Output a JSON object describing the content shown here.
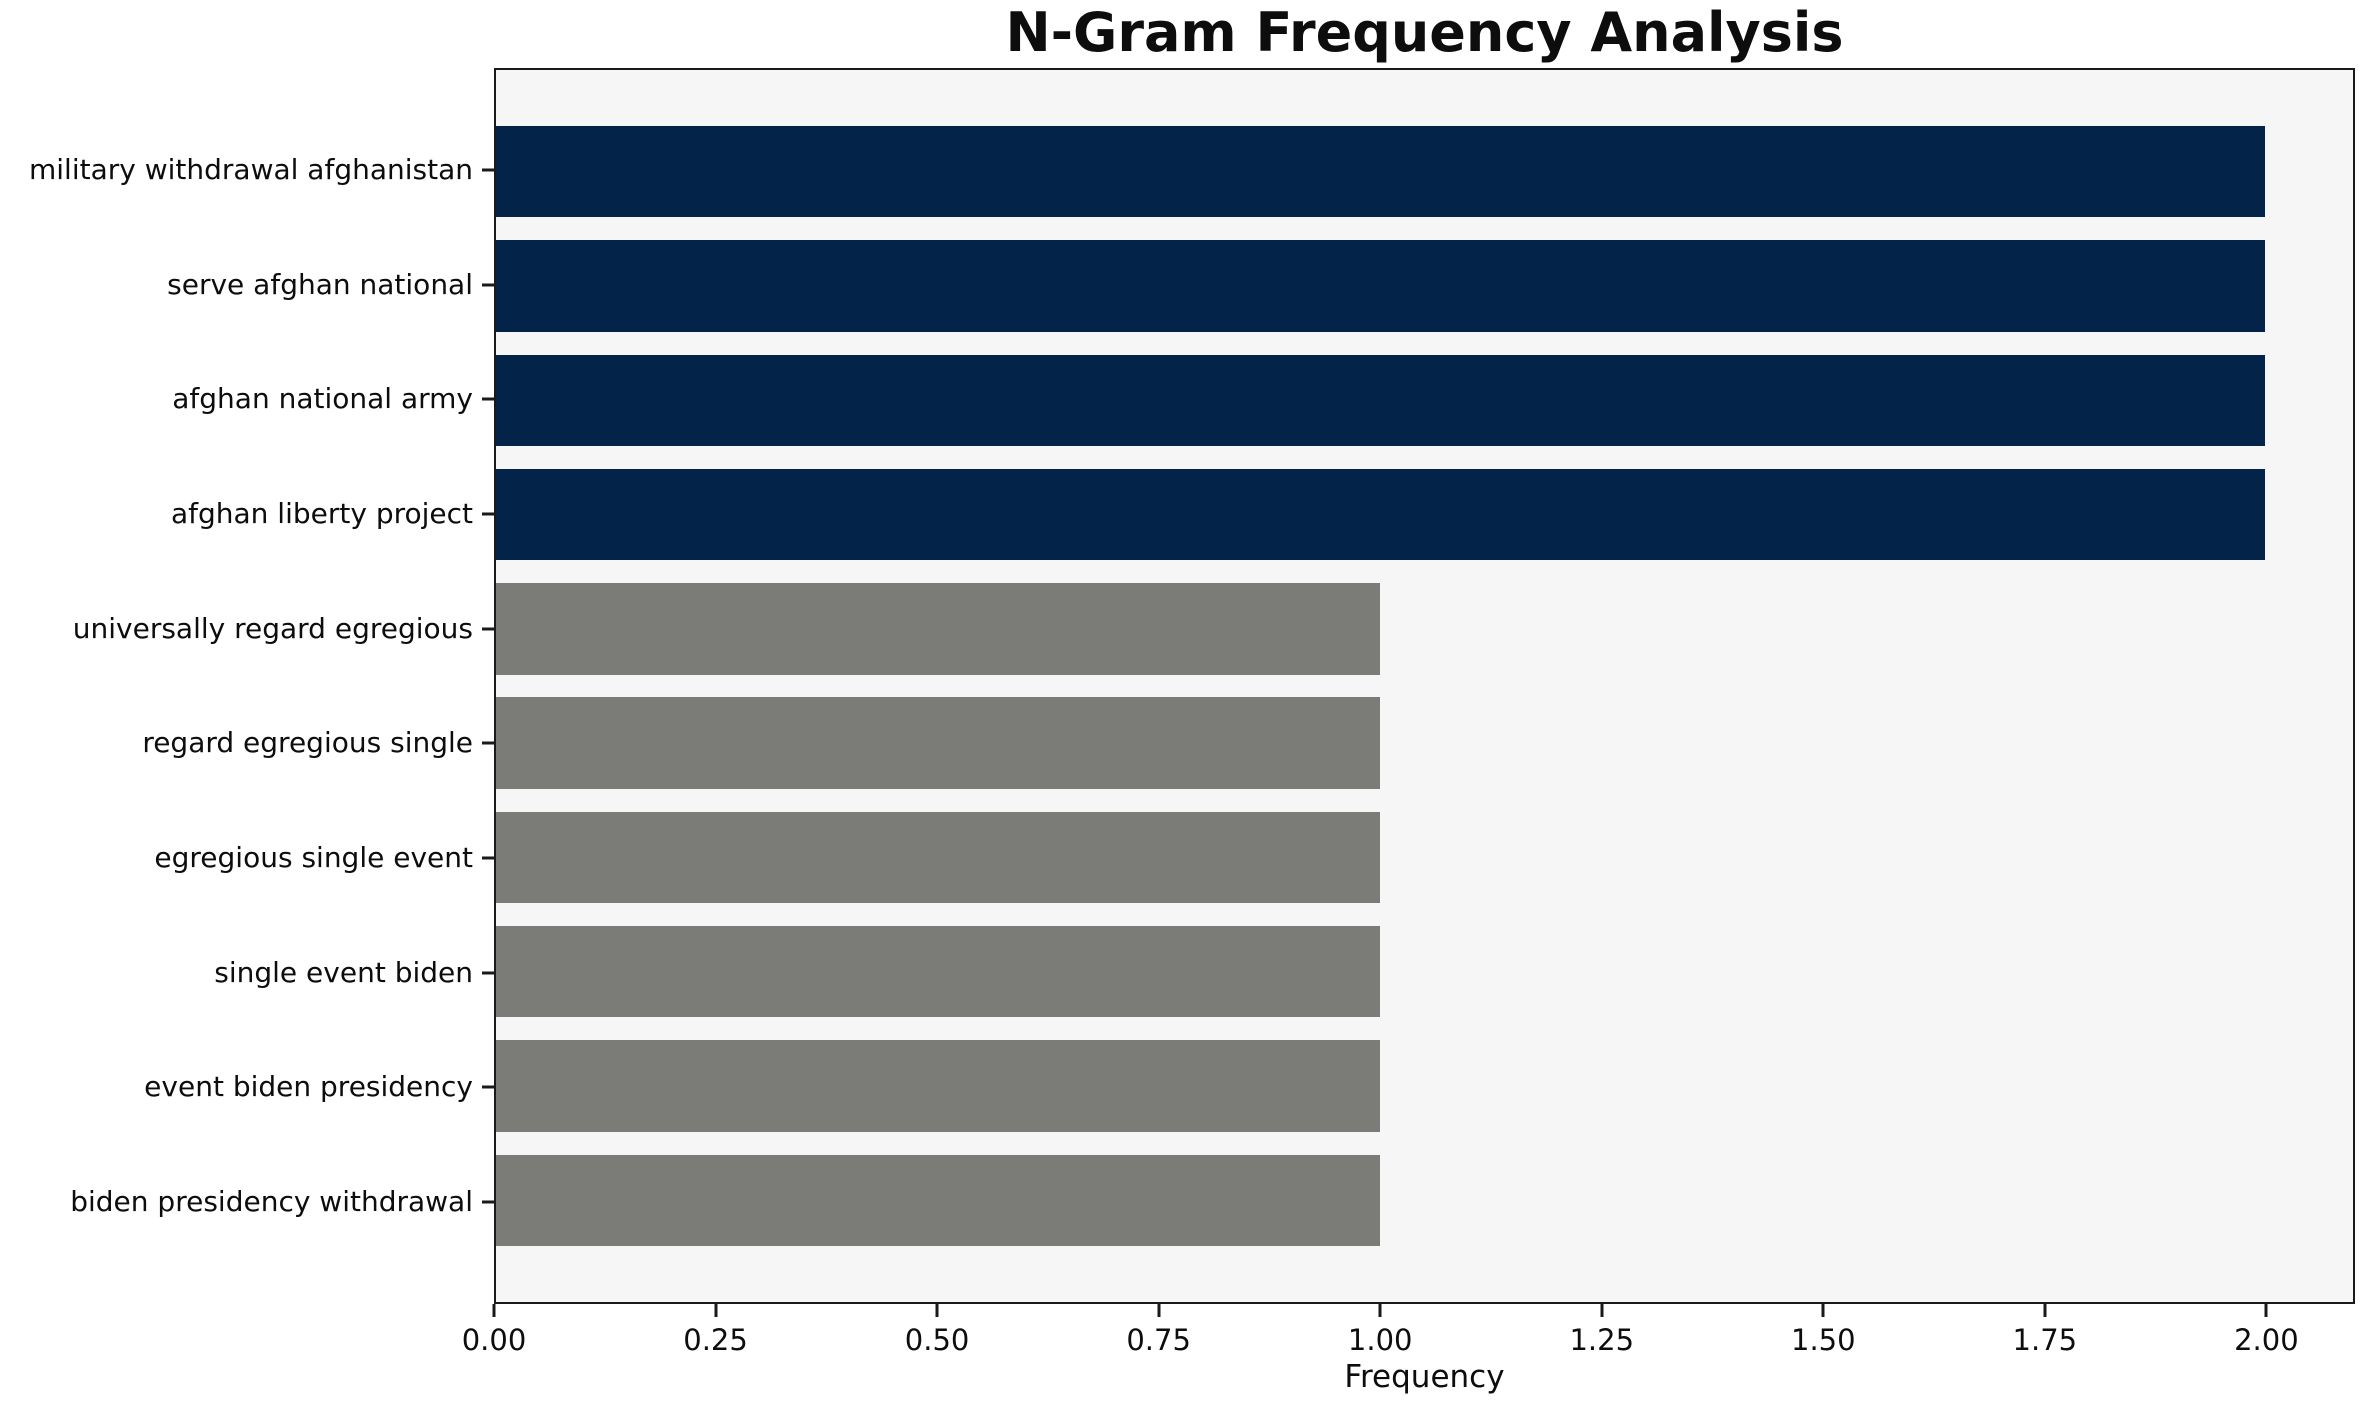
{
  "chart_data": {
    "type": "bar",
    "orientation": "horizontal",
    "title": "N-Gram Frequency Analysis",
    "xlabel": "Frequency",
    "ylabel": "",
    "categories": [
      "military withdrawal afghanistan",
      "serve afghan national",
      "afghan national army",
      "afghan liberty project",
      "universally regard egregious",
      "regard egregious single",
      "egregious single event",
      "single event biden",
      "event biden presidency",
      "biden presidency withdrawal"
    ],
    "values": [
      2,
      2,
      2,
      2,
      1,
      1,
      1,
      1,
      1,
      1
    ],
    "bar_colors": [
      "#042349",
      "#042349",
      "#042349",
      "#042349",
      "#7b7b77",
      "#7b7b77",
      "#7b7b77",
      "#7b7b77",
      "#7b7b77",
      "#7b7b77"
    ],
    "xlim": [
      0,
      2.1
    ],
    "xticks": [
      "0.00",
      "0.25",
      "0.50",
      "0.75",
      "1.00",
      "1.25",
      "1.50",
      "1.75",
      "2.00"
    ],
    "grid": false,
    "legend": false,
    "colors": {
      "highlight_bar": "#042349",
      "default_bar": "#7b7b77",
      "plot_background": "#f6f6f7",
      "figure_background": "#ffffff",
      "spine": "#1a1a1a",
      "text": "#0d0d0d"
    }
  }
}
